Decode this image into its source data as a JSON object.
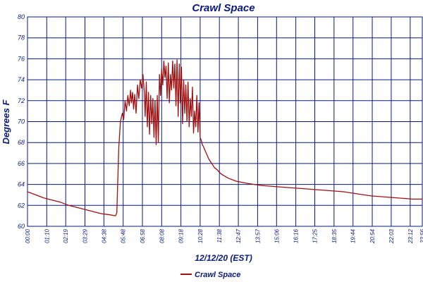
{
  "chart_data": {
    "type": "line",
    "title": "Crawl Space",
    "xlabel": "12/12/20 (EST)",
    "ylabel": "Degrees F",
    "ylim": [
      60,
      80
    ],
    "yticks": [
      60,
      62,
      64,
      66,
      68,
      70,
      72,
      74,
      76,
      78,
      80
    ],
    "xlim": [
      0,
      1436
    ],
    "xtick_labels": [
      "00:00",
      "01:10",
      "02:19",
      "03:29",
      "04:38",
      "05:48",
      "06:58",
      "08:08",
      "09:18",
      "10:28",
      "11:38",
      "12:47",
      "13:57",
      "15:06",
      "16:16",
      "17:25",
      "18:35",
      "19:44",
      "20:54",
      "22:03",
      "23:12",
      "23:56"
    ],
    "xticks_min": [
      0,
      70,
      139,
      209,
      278,
      348,
      418,
      488,
      558,
      628,
      698,
      767,
      837,
      906,
      976,
      1045,
      1115,
      1184,
      1254,
      1323,
      1392,
      1436
    ],
    "grid": true,
    "legend_position": "bottom-center",
    "series": [
      {
        "name": "Crawl Space",
        "color": "#a01010",
        "x": [
          0,
          30,
          60,
          90,
          120,
          150,
          180,
          210,
          240,
          270,
          300,
          320,
          325,
          328,
          332,
          338,
          345,
          350,
          355,
          360,
          365,
          370,
          375,
          378,
          382,
          386,
          390,
          395,
          400,
          405,
          410,
          415,
          420,
          425,
          428,
          432,
          436,
          440,
          444,
          448,
          452,
          456,
          460,
          464,
          468,
          472,
          476,
          480,
          484,
          488,
          492,
          496,
          500,
          504,
          508,
          512,
          516,
          520,
          524,
          528,
          532,
          536,
          540,
          544,
          548,
          552,
          556,
          560,
          564,
          568,
          572,
          576,
          580,
          584,
          588,
          592,
          596,
          600,
          604,
          608,
          612,
          616,
          620,
          624,
          628,
          632,
          636,
          640,
          645,
          650,
          660,
          670,
          680,
          690,
          700,
          710,
          730,
          760,
          800,
          850,
          900,
          950,
          1000,
          1050,
          1100,
          1150,
          1200,
          1250,
          1300,
          1350,
          1400,
          1436
        ],
        "y": [
          63.3,
          63.0,
          62.7,
          62.5,
          62.3,
          62.0,
          61.8,
          61.6,
          61.4,
          61.2,
          61.1,
          61.0,
          61.3,
          64.0,
          67.5,
          70.0,
          70.8,
          70.2,
          72.0,
          71.0,
          72.5,
          71.5,
          73.0,
          71.8,
          72.8,
          71.2,
          72.6,
          70.8,
          73.5,
          72.2,
          74.0,
          73.2,
          74.5,
          72.8,
          70.5,
          73.8,
          69.5,
          72.8,
          68.8,
          72.5,
          69.8,
          72.2,
          68.5,
          72.0,
          67.8,
          72.5,
          68.0,
          74.5,
          72.5,
          75.0,
          73.5,
          75.8,
          74.2,
          75.3,
          72.2,
          75.6,
          71.8,
          74.5,
          73.0,
          75.8,
          73.2,
          75.5,
          71.5,
          75.9,
          70.5,
          75.5,
          71.8,
          75.2,
          69.8,
          74.0,
          70.8,
          73.5,
          70.0,
          73.8,
          69.5,
          72.2,
          70.5,
          73.3,
          68.9,
          71.0,
          69.5,
          72.5,
          69.0,
          71.8,
          68.5,
          68.2,
          67.8,
          67.6,
          67.3,
          67.0,
          66.4,
          66.0,
          65.6,
          65.4,
          65.1,
          64.9,
          64.6,
          64.3,
          64.1,
          63.9,
          63.8,
          63.7,
          63.6,
          63.5,
          63.4,
          63.3,
          63.1,
          62.9,
          62.8,
          62.7,
          62.6,
          62.6
        ]
      }
    ]
  }
}
